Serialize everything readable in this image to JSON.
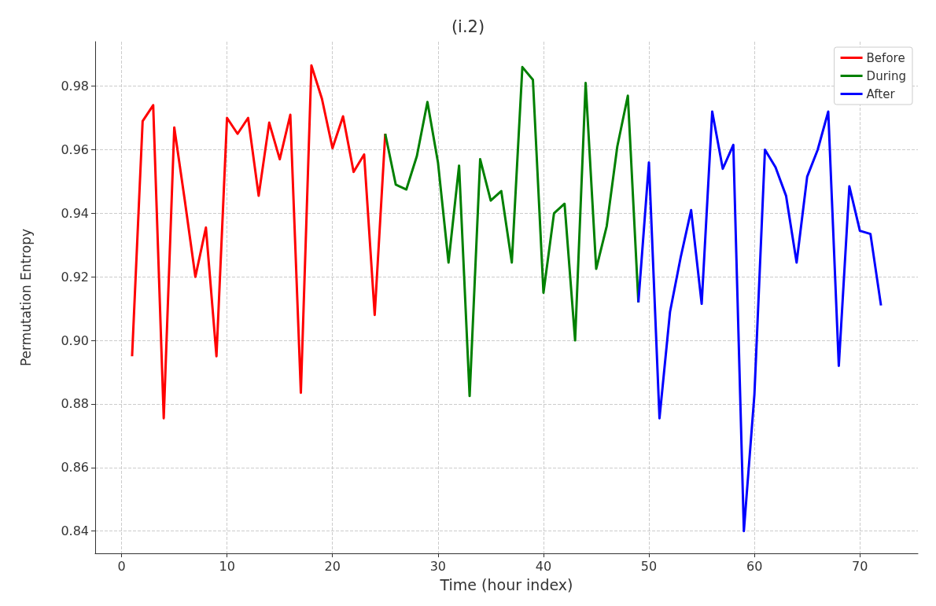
{
  "chart_data": {
    "type": "line",
    "title": "(i.2)",
    "xlabel": "Time (hour index)",
    "ylabel": "Permutation Entropy",
    "xlim": [
      -2.5,
      75.5
    ],
    "xticks": [
      0,
      10,
      20,
      30,
      40,
      50,
      60,
      70
    ],
    "ylim": [
      0.833,
      0.994
    ],
    "yticks": [
      0.84,
      0.86,
      0.88,
      {
        "value": 0.9,
        "label": "0.90"
      },
      0.92,
      0.94,
      0.96,
      0.98
    ],
    "grid": true,
    "legend": "top right",
    "marker": "none",
    "line_style": "solid",
    "series": [
      {
        "name": "Before",
        "color": "#ff0000",
        "x": [
          1,
          2,
          3,
          4,
          5,
          6,
          7,
          8,
          9,
          10,
          11,
          12,
          13,
          14,
          15,
          16,
          17,
          18,
          19,
          20,
          21,
          22,
          23,
          24,
          25
        ],
        "values": [
          0.895,
          0.969,
          0.974,
          0.8755,
          0.967,
          0.944,
          0.92,
          0.9355,
          0.895,
          0.97,
          0.965,
          0.97,
          0.9455,
          0.9685,
          0.957,
          0.971,
          0.8835,
          0.9865,
          0.976,
          0.9605,
          0.9705,
          0.953,
          0.9585,
          0.908,
          0.965
        ]
      },
      {
        "name": "During",
        "color": "#008000",
        "x": [
          25,
          26,
          27,
          28,
          29,
          30,
          31,
          32,
          33,
          34,
          35,
          36,
          37,
          38,
          39,
          40,
          41,
          42,
          43,
          44,
          45,
          46,
          47,
          48,
          49
        ],
        "values": [
          0.965,
          0.949,
          0.9475,
          0.958,
          0.975,
          0.956,
          0.9245,
          0.955,
          0.8825,
          0.957,
          0.944,
          0.947,
          0.9245,
          0.986,
          0.982,
          0.915,
          0.94,
          0.943,
          0.9,
          0.981,
          0.9225,
          0.936,
          0.961,
          0.977,
          0.912
        ]
      },
      {
        "name": "After",
        "color": "#0000ff",
        "x": [
          49,
          50,
          51,
          52,
          53,
          54,
          55,
          56,
          57,
          58,
          59,
          60,
          61,
          62,
          63,
          64,
          65,
          66,
          67,
          68,
          69,
          70,
          71,
          72
        ],
        "values": [
          0.912,
          0.956,
          0.8755,
          0.909,
          0.926,
          0.941,
          0.9115,
          0.972,
          0.954,
          0.9615,
          0.84,
          0.883,
          0.96,
          0.9545,
          0.9455,
          0.9245,
          0.9515,
          0.96,
          0.972,
          0.892,
          0.9485,
          0.9345,
          0.9335,
          0.911
        ]
      }
    ]
  }
}
